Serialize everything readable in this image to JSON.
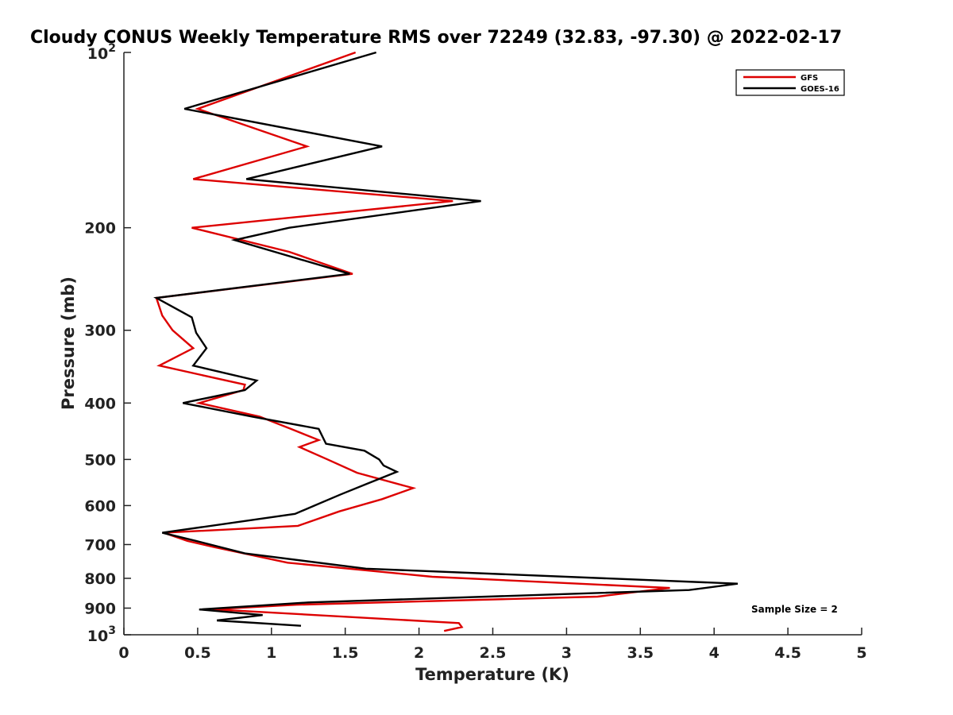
{
  "chart_data": {
    "type": "line",
    "title": "Cloudy CONUS Weekly Temperature RMS over 72249 (32.83, -97.30) @ 2022-02-17",
    "xlabel": "Temperature (K)",
    "ylabel": "Pressure (mb)",
    "xlim": [
      0,
      5
    ],
    "ylim": [
      100,
      1000
    ],
    "yscale": "log",
    "y_reversed": true,
    "x_ticks": [
      "0",
      "0.5",
      "1",
      "1.5",
      "2",
      "2.5",
      "3",
      "3.5",
      "4",
      "4.5",
      "5"
    ],
    "x_tick_values": [
      0,
      0.5,
      1,
      1.5,
      2,
      2.5,
      3,
      3.5,
      4,
      4.5,
      5
    ],
    "y_ticks": [
      {
        "value": 100,
        "base": "10",
        "exp": "2",
        "label": ""
      },
      {
        "value": 200,
        "label": "200"
      },
      {
        "value": 300,
        "label": "300"
      },
      {
        "value": 400,
        "label": "400"
      },
      {
        "value": 500,
        "label": "500"
      },
      {
        "value": 600,
        "label": "600"
      },
      {
        "value": 700,
        "label": "700"
      },
      {
        "value": 800,
        "label": "800"
      },
      {
        "value": 900,
        "label": "900"
      },
      {
        "value": 1000,
        "base": "10",
        "exp": "3",
        "label": ""
      }
    ],
    "grid": false,
    "legend_position": "top-right",
    "annotation": "Sample Size = 2",
    "series": [
      {
        "name": "GFS",
        "color": "#dd0000",
        "x": [
          1.57,
          0.5,
          1.24,
          0.47,
          2.23,
          0.46,
          1.12,
          1.55,
          0.22,
          0.26,
          0.33,
          0.47,
          0.24,
          0.82,
          0.81,
          0.51,
          0.92,
          1.13,
          1.32,
          1.19,
          1.38,
          1.58,
          1.96,
          1.75,
          1.46,
          1.18,
          0.27,
          0.43,
          0.61,
          1.11,
          2.09,
          3.7,
          3.21,
          1.17,
          0.6,
          2.27,
          2.29,
          2.17
        ],
        "y": [
          100,
          125,
          145,
          165,
          180,
          200,
          220,
          240,
          264,
          283,
          300,
          322,
          345,
          372,
          380,
          400,
          422,
          443,
          463,
          476,
          500,
          527,
          560,
          585,
          614,
          650,
          668,
          690,
          707,
          752,
          795,
          831,
          860,
          888,
          904,
          955,
          970,
          985
        ]
      },
      {
        "name": "GOES-16",
        "color": "#000000",
        "x": [
          1.71,
          0.41,
          1.75,
          0.83,
          2.42,
          1.12,
          0.75,
          1.53,
          0.22,
          0.46,
          0.49,
          0.56,
          0.47,
          0.9,
          0.82,
          0.4,
          0.87,
          1.32,
          1.37,
          1.63,
          1.73,
          1.76,
          1.85,
          1.65,
          1.47,
          1.16,
          0.26,
          0.49,
          0.82,
          1.64,
          4.16,
          3.83,
          1.25,
          0.51,
          0.94,
          0.63,
          1.2
        ],
        "y": [
          100,
          125,
          145,
          165,
          180,
          200,
          210,
          240,
          264,
          285,
          303,
          322,
          345,
          366,
          380,
          400,
          422,
          443,
          470,
          483,
          500,
          512,
          525,
          550,
          574,
          620,
          668,
          690,
          725,
          770,
          817,
          838,
          880,
          905,
          925,
          945,
          965
        ]
      }
    ]
  }
}
